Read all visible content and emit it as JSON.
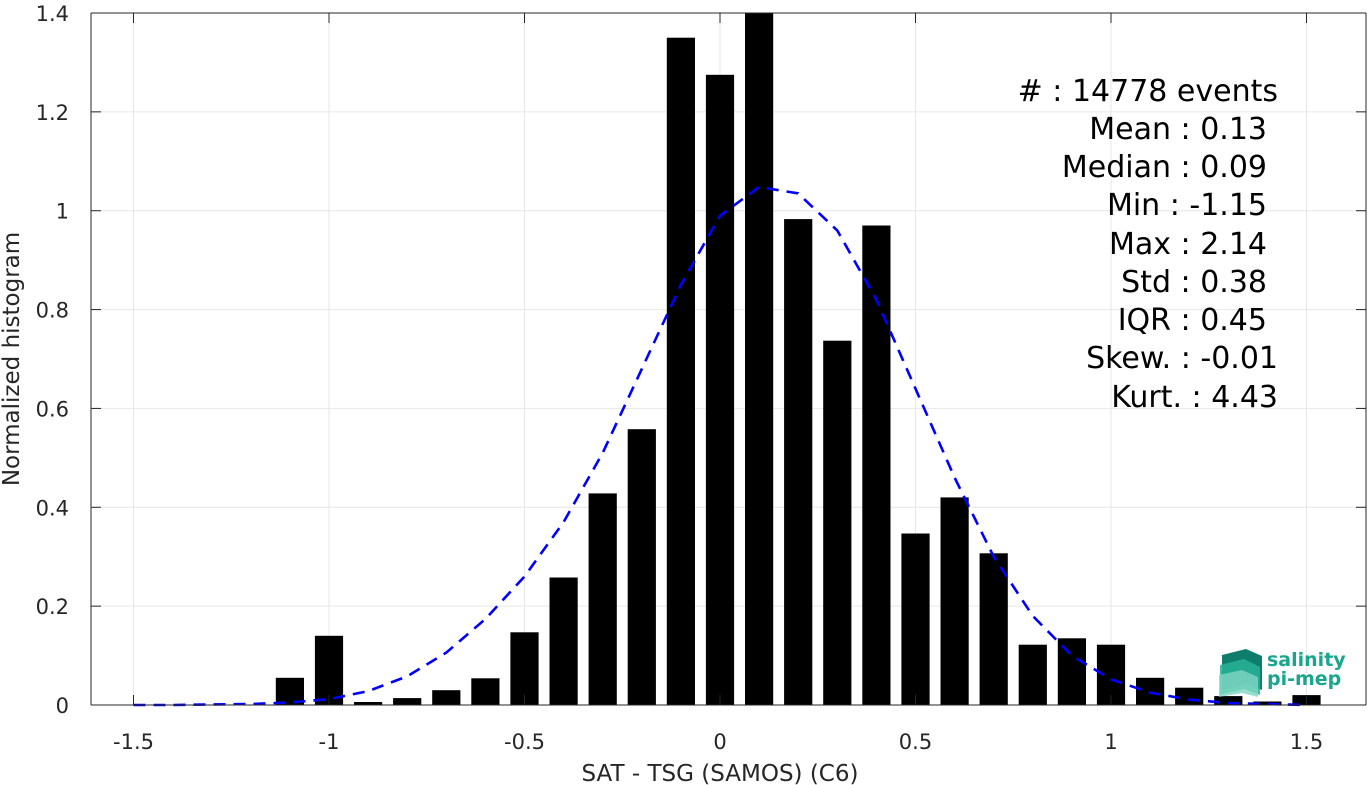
{
  "chart_data": {
    "type": "bar",
    "title": "",
    "xlabel": "SAT - TSG (SAMOS) (C6)",
    "ylabel": "Normalized histogram",
    "xlim": [
      -1.6,
      1.6
    ],
    "ylim": [
      0,
      1.4
    ],
    "grid": true,
    "x_ticks": [
      -1.5,
      -1,
      -0.5,
      0,
      0.5,
      1,
      1.5
    ],
    "x_tick_labels": [
      "-1.5",
      "-1",
      "-0.5",
      "0",
      "0.5",
      "1",
      "1.5"
    ],
    "y_ticks": [
      0,
      0.2,
      0.4,
      0.6,
      0.8,
      1,
      1.2,
      1.4
    ],
    "y_tick_labels": [
      "0",
      "0.2",
      "0.4",
      "0.6",
      "0.8",
      "1",
      "1.2",
      "1.4"
    ],
    "bar_color": "#000000",
    "bar_width": 0.072,
    "bars": {
      "x": [
        -1.1,
        -1.0,
        -0.9,
        -0.8,
        -0.7,
        -0.6,
        -0.5,
        -0.4,
        -0.3,
        -0.2,
        -0.1,
        0.0,
        0.1,
        0.2,
        0.3,
        0.4,
        0.5,
        0.6,
        0.7,
        0.8,
        0.9,
        1.0,
        1.1,
        1.2,
        1.3,
        1.4,
        1.5
      ],
      "values": [
        0.055,
        0.14,
        0.006,
        0.014,
        0.03,
        0.054,
        0.147,
        0.258,
        0.428,
        0.558,
        1.35,
        1.275,
        1.4,
        0.983,
        0.737,
        0.97,
        0.347,
        0.42,
        0.307,
        0.122,
        0.135,
        0.122,
        0.055,
        0.035,
        0.018,
        0.007,
        0.02
      ]
    },
    "fit_curve": {
      "style": "dashed",
      "color": "#0000ff",
      "x": [
        -1.5,
        -1.4,
        -1.3,
        -1.2,
        -1.1,
        -1.0,
        -0.9,
        -0.8,
        -0.7,
        -0.6,
        -0.5,
        -0.4,
        -0.3,
        -0.2,
        -0.1,
        0.0,
        0.1,
        0.2,
        0.3,
        0.4,
        0.5,
        0.6,
        0.7,
        0.8,
        0.9,
        1.0,
        1.1,
        1.2,
        1.3,
        1.4,
        1.5
      ],
      "y": [
        0.0,
        0.0,
        0.001,
        0.002,
        0.005,
        0.012,
        0.028,
        0.058,
        0.106,
        0.174,
        0.26,
        0.37,
        0.51,
        0.68,
        0.85,
        0.99,
        1.048,
        1.035,
        0.96,
        0.82,
        0.64,
        0.46,
        0.3,
        0.18,
        0.1,
        0.052,
        0.025,
        0.011,
        0.004,
        0.002,
        0.0
      ]
    },
    "annotations": [
      "#  : 14778 events",
      "Mean : 0.13",
      "Median : 0.09",
      "Min : -1.15",
      "Max : 2.14",
      "Std : 0.38",
      "IQR : 0.45",
      "Skew. : -0.01",
      "Kurt. : 4.43"
    ]
  },
  "logo": {
    "line1": "salinity",
    "line2": "pi-mep",
    "color": "#1aa58e"
  }
}
